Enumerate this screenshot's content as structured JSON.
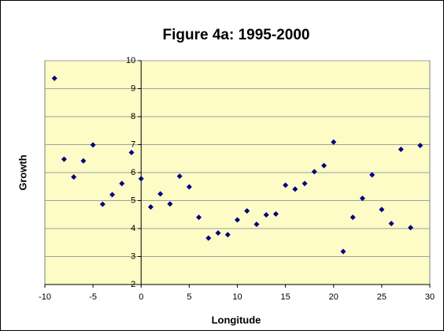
{
  "chart_data": {
    "type": "scatter",
    "title": "Figure 4a: 1995-2000",
    "x_label": "Longitude",
    "y_label": "Growth",
    "color": "#000080",
    "grid": true,
    "xlim": [
      -10,
      30
    ],
    "xticks": [
      -10,
      -5,
      0,
      5,
      10,
      15,
      20,
      25,
      30
    ],
    "ylim": [
      2,
      10
    ],
    "yticks": [
      2,
      3,
      4,
      5,
      6,
      7,
      8,
      9,
      10
    ],
    "x": [
      -9,
      -8,
      -7,
      -6,
      -5,
      -4,
      -3,
      -2,
      -1,
      0,
      1,
      2,
      3,
      4,
      5,
      6,
      7,
      8,
      9,
      10,
      11,
      12,
      13,
      14,
      15,
      16,
      17,
      18,
      19,
      20,
      21,
      22,
      23,
      24,
      25,
      26,
      27,
      28,
      29
    ],
    "values": [
      9.37,
      6.48,
      5.84,
      6.42,
      6.99,
      4.87,
      5.21,
      5.61,
      6.72,
      5.78,
      4.77,
      5.24,
      4.88,
      5.87,
      5.49,
      4.4,
      3.66,
      3.84,
      3.78,
      4.31,
      4.63,
      4.15,
      4.49,
      4.52,
      5.55,
      5.41,
      5.61,
      6.03,
      6.25,
      7.09,
      3.18,
      4.4,
      5.08,
      5.92,
      4.68,
      4.18,
      6.83,
      4.03,
      6.97
    ]
  }
}
